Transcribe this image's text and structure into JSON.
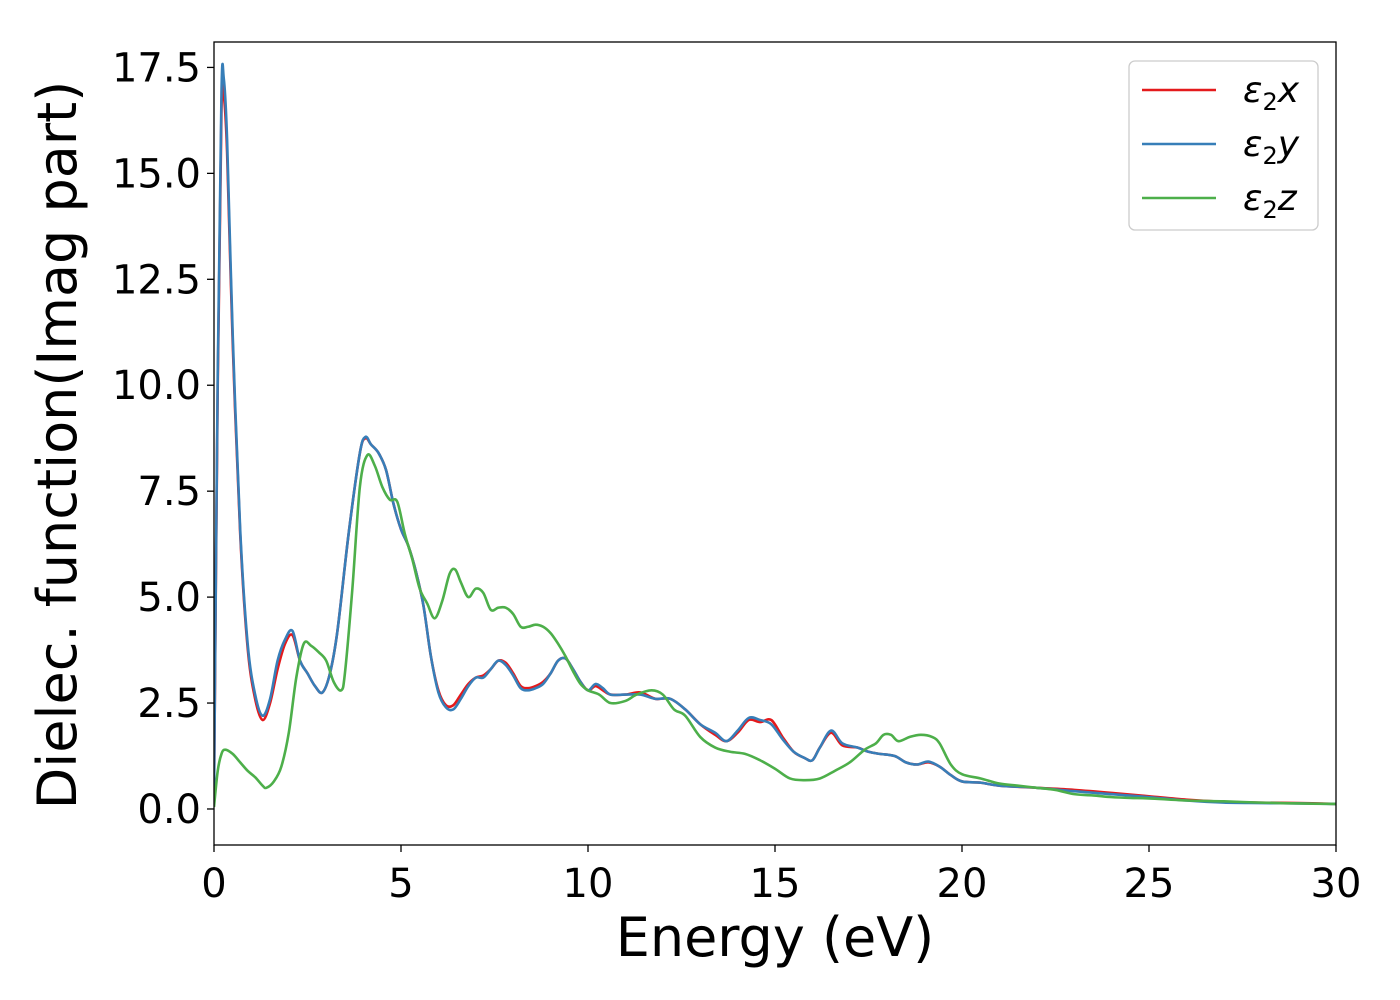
{
  "chart_data": {
    "type": "line",
    "title": "",
    "xlabel": "Energy (eV)",
    "ylabel": "Dielec. function(Imag part)",
    "xlim": [
      0,
      30
    ],
    "ylim": [
      -0.85,
      18.1
    ],
    "xticks": [
      0,
      5,
      10,
      15,
      20,
      25,
      30
    ],
    "xtick_labels": [
      "0",
      "5",
      "10",
      "15",
      "20",
      "25",
      "30"
    ],
    "yticks": [
      0.0,
      2.5,
      5.0,
      7.5,
      10.0,
      12.5,
      15.0,
      17.5
    ],
    "ytick_labels": [
      "0.0",
      "2.5",
      "5.0",
      "7.5",
      "10.0",
      "12.5",
      "15.0",
      "17.5"
    ],
    "grid": false,
    "legend_position": "top-right",
    "series": [
      {
        "name": "ε2x",
        "legend": {
          "base": "ε",
          "sub": "2",
          "var": "x"
        },
        "color": "#e41a1c",
        "points": [
          [
            0,
            0.3
          ],
          [
            0.1,
            10
          ],
          [
            0.2,
            16.5
          ],
          [
            0.26,
            16.85
          ],
          [
            0.35,
            15.5
          ],
          [
            0.5,
            11
          ],
          [
            0.7,
            6.5
          ],
          [
            0.9,
            3.8
          ],
          [
            1.1,
            2.6
          ],
          [
            1.3,
            2.1
          ],
          [
            1.5,
            2.5
          ],
          [
            1.7,
            3.3
          ],
          [
            1.9,
            3.9
          ],
          [
            2.1,
            4.1
          ],
          [
            2.3,
            3.5
          ],
          [
            2.5,
            3.2
          ],
          [
            2.7,
            2.9
          ],
          [
            2.9,
            2.75
          ],
          [
            3.1,
            3.2
          ],
          [
            3.3,
            4.2
          ],
          [
            3.6,
            6.5
          ],
          [
            3.9,
            8.4
          ],
          [
            4.05,
            8.75
          ],
          [
            4.2,
            8.6
          ],
          [
            4.4,
            8.4
          ],
          [
            4.6,
            8.0
          ],
          [
            4.8,
            7.2
          ],
          [
            5.0,
            6.6
          ],
          [
            5.2,
            6.2
          ],
          [
            5.4,
            5.6
          ],
          [
            5.6,
            4.8
          ],
          [
            5.8,
            3.6
          ],
          [
            6.0,
            2.8
          ],
          [
            6.2,
            2.45
          ],
          [
            6.4,
            2.45
          ],
          [
            6.6,
            2.7
          ],
          [
            6.8,
            2.95
          ],
          [
            7.0,
            3.1
          ],
          [
            7.2,
            3.15
          ],
          [
            7.4,
            3.3
          ],
          [
            7.6,
            3.5
          ],
          [
            7.8,
            3.45
          ],
          [
            8.0,
            3.2
          ],
          [
            8.2,
            2.9
          ],
          [
            8.4,
            2.85
          ],
          [
            8.6,
            2.9
          ],
          [
            8.8,
            3.0
          ],
          [
            9.0,
            3.2
          ],
          [
            9.2,
            3.5
          ],
          [
            9.4,
            3.55
          ],
          [
            9.6,
            3.3
          ],
          [
            9.8,
            3.0
          ],
          [
            10.0,
            2.8
          ],
          [
            10.2,
            2.9
          ],
          [
            10.4,
            2.8
          ],
          [
            10.6,
            2.7
          ],
          [
            11.0,
            2.7
          ],
          [
            11.4,
            2.75
          ],
          [
            11.8,
            2.6
          ],
          [
            12.2,
            2.6
          ],
          [
            12.6,
            2.35
          ],
          [
            13.0,
            2.0
          ],
          [
            13.4,
            1.75
          ],
          [
            13.7,
            1.6
          ],
          [
            14.0,
            1.8
          ],
          [
            14.3,
            2.1
          ],
          [
            14.6,
            2.05
          ],
          [
            14.9,
            2.1
          ],
          [
            15.2,
            1.7
          ],
          [
            15.5,
            1.35
          ],
          [
            15.8,
            1.2
          ],
          [
            16.0,
            1.15
          ],
          [
            16.2,
            1.45
          ],
          [
            16.5,
            1.8
          ],
          [
            16.8,
            1.5
          ],
          [
            17.2,
            1.45
          ],
          [
            17.5,
            1.35
          ],
          [
            17.8,
            1.3
          ],
          [
            18.2,
            1.25
          ],
          [
            18.5,
            1.1
          ],
          [
            18.8,
            1.05
          ],
          [
            19.1,
            1.1
          ],
          [
            19.4,
            1.0
          ],
          [
            19.7,
            0.8
          ],
          [
            20.0,
            0.65
          ],
          [
            20.5,
            0.62
          ],
          [
            21.0,
            0.55
          ],
          [
            22.0,
            0.5
          ],
          [
            23.0,
            0.45
          ],
          [
            24.0,
            0.38
          ],
          [
            25.0,
            0.3
          ],
          [
            26.0,
            0.22
          ],
          [
            27.0,
            0.17
          ],
          [
            28.0,
            0.15
          ],
          [
            29.0,
            0.14
          ],
          [
            30.0,
            0.12
          ]
        ]
      },
      {
        "name": "ε2y",
        "legend": {
          "base": "ε",
          "sub": "2",
          "var": "y"
        },
        "color": "#377eb8",
        "points": [
          [
            0,
            0.3
          ],
          [
            0.1,
            10.3
          ],
          [
            0.2,
            16.9
          ],
          [
            0.26,
            17.25
          ],
          [
            0.35,
            15.8
          ],
          [
            0.5,
            11.2
          ],
          [
            0.7,
            6.6
          ],
          [
            0.9,
            3.9
          ],
          [
            1.1,
            2.7
          ],
          [
            1.3,
            2.2
          ],
          [
            1.5,
            2.6
          ],
          [
            1.7,
            3.5
          ],
          [
            1.9,
            4.0
          ],
          [
            2.1,
            4.2
          ],
          [
            2.3,
            3.5
          ],
          [
            2.5,
            3.2
          ],
          [
            2.7,
            2.9
          ],
          [
            2.9,
            2.75
          ],
          [
            3.1,
            3.2
          ],
          [
            3.3,
            4.2
          ],
          [
            3.6,
            6.5
          ],
          [
            3.9,
            8.4
          ],
          [
            4.05,
            8.78
          ],
          [
            4.2,
            8.6
          ],
          [
            4.4,
            8.4
          ],
          [
            4.6,
            8.0
          ],
          [
            4.8,
            7.2
          ],
          [
            5.0,
            6.6
          ],
          [
            5.2,
            6.2
          ],
          [
            5.4,
            5.6
          ],
          [
            5.6,
            4.8
          ],
          [
            5.8,
            3.6
          ],
          [
            6.0,
            2.75
          ],
          [
            6.2,
            2.4
          ],
          [
            6.4,
            2.35
          ],
          [
            6.6,
            2.6
          ],
          [
            6.8,
            2.9
          ],
          [
            7.0,
            3.1
          ],
          [
            7.2,
            3.1
          ],
          [
            7.4,
            3.3
          ],
          [
            7.6,
            3.5
          ],
          [
            7.8,
            3.4
          ],
          [
            8.0,
            3.15
          ],
          [
            8.2,
            2.85
          ],
          [
            8.4,
            2.8
          ],
          [
            8.6,
            2.85
          ],
          [
            8.8,
            2.95
          ],
          [
            9.0,
            3.2
          ],
          [
            9.2,
            3.5
          ],
          [
            9.4,
            3.55
          ],
          [
            9.6,
            3.3
          ],
          [
            9.8,
            3.0
          ],
          [
            10.0,
            2.8
          ],
          [
            10.2,
            2.95
          ],
          [
            10.4,
            2.85
          ],
          [
            10.6,
            2.7
          ],
          [
            11.0,
            2.7
          ],
          [
            11.4,
            2.7
          ],
          [
            11.8,
            2.6
          ],
          [
            12.2,
            2.6
          ],
          [
            12.6,
            2.35
          ],
          [
            13.0,
            2.0
          ],
          [
            13.4,
            1.8
          ],
          [
            13.7,
            1.6
          ],
          [
            14.0,
            1.85
          ],
          [
            14.3,
            2.15
          ],
          [
            14.6,
            2.1
          ],
          [
            14.9,
            2.0
          ],
          [
            15.2,
            1.65
          ],
          [
            15.5,
            1.35
          ],
          [
            15.8,
            1.2
          ],
          [
            16.0,
            1.15
          ],
          [
            16.2,
            1.45
          ],
          [
            16.5,
            1.85
          ],
          [
            16.8,
            1.55
          ],
          [
            17.2,
            1.45
          ],
          [
            17.5,
            1.35
          ],
          [
            17.8,
            1.3
          ],
          [
            18.2,
            1.25
          ],
          [
            18.5,
            1.1
          ],
          [
            18.8,
            1.05
          ],
          [
            19.1,
            1.12
          ],
          [
            19.4,
            1.0
          ],
          [
            19.7,
            0.8
          ],
          [
            20.0,
            0.65
          ],
          [
            20.5,
            0.62
          ],
          [
            21.0,
            0.55
          ],
          [
            22.0,
            0.5
          ],
          [
            23.0,
            0.42
          ],
          [
            24.0,
            0.35
          ],
          [
            25.0,
            0.28
          ],
          [
            26.0,
            0.2
          ],
          [
            27.0,
            0.15
          ],
          [
            28.0,
            0.14
          ],
          [
            29.0,
            0.13
          ],
          [
            30.0,
            0.12
          ]
        ]
      },
      {
        "name": "ε2z",
        "legend": {
          "base": "ε",
          "sub": "2",
          "var": "z"
        },
        "color": "#4daf4a",
        "points": [
          [
            0,
            0.05
          ],
          [
            0.1,
            0.9
          ],
          [
            0.2,
            1.3
          ],
          [
            0.3,
            1.4
          ],
          [
            0.5,
            1.3
          ],
          [
            0.7,
            1.1
          ],
          [
            0.9,
            0.9
          ],
          [
            1.1,
            0.75
          ],
          [
            1.3,
            0.55
          ],
          [
            1.4,
            0.5
          ],
          [
            1.6,
            0.65
          ],
          [
            1.8,
            1.0
          ],
          [
            2.0,
            1.8
          ],
          [
            2.2,
            3.1
          ],
          [
            2.4,
            3.9
          ],
          [
            2.6,
            3.85
          ],
          [
            2.8,
            3.7
          ],
          [
            3.0,
            3.5
          ],
          [
            3.2,
            3.0
          ],
          [
            3.4,
            2.8
          ],
          [
            3.5,
            3.2
          ],
          [
            3.7,
            5.2
          ],
          [
            3.9,
            7.6
          ],
          [
            4.1,
            8.35
          ],
          [
            4.3,
            8.1
          ],
          [
            4.5,
            7.6
          ],
          [
            4.7,
            7.3
          ],
          [
            4.9,
            7.25
          ],
          [
            5.1,
            6.5
          ],
          [
            5.3,
            5.9
          ],
          [
            5.5,
            5.2
          ],
          [
            5.7,
            4.85
          ],
          [
            5.9,
            4.5
          ],
          [
            6.1,
            4.9
          ],
          [
            6.3,
            5.55
          ],
          [
            6.45,
            5.65
          ],
          [
            6.6,
            5.35
          ],
          [
            6.8,
            5.0
          ],
          [
            7.0,
            5.2
          ],
          [
            7.2,
            5.1
          ],
          [
            7.4,
            4.7
          ],
          [
            7.6,
            4.75
          ],
          [
            7.8,
            4.75
          ],
          [
            8.0,
            4.6
          ],
          [
            8.2,
            4.3
          ],
          [
            8.4,
            4.3
          ],
          [
            8.6,
            4.35
          ],
          [
            8.8,
            4.3
          ],
          [
            9.0,
            4.15
          ],
          [
            9.2,
            3.9
          ],
          [
            9.4,
            3.6
          ],
          [
            9.6,
            3.25
          ],
          [
            9.8,
            2.95
          ],
          [
            10.0,
            2.8
          ],
          [
            10.3,
            2.7
          ],
          [
            10.6,
            2.5
          ],
          [
            11.0,
            2.55
          ],
          [
            11.3,
            2.7
          ],
          [
            11.7,
            2.8
          ],
          [
            12.0,
            2.7
          ],
          [
            12.3,
            2.35
          ],
          [
            12.6,
            2.2
          ],
          [
            13.0,
            1.7
          ],
          [
            13.4,
            1.45
          ],
          [
            13.8,
            1.35
          ],
          [
            14.2,
            1.3
          ],
          [
            14.6,
            1.15
          ],
          [
            15.0,
            0.95
          ],
          [
            15.4,
            0.72
          ],
          [
            15.8,
            0.68
          ],
          [
            16.2,
            0.72
          ],
          [
            16.6,
            0.9
          ],
          [
            17.0,
            1.1
          ],
          [
            17.4,
            1.4
          ],
          [
            17.7,
            1.55
          ],
          [
            17.9,
            1.75
          ],
          [
            18.1,
            1.75
          ],
          [
            18.3,
            1.6
          ],
          [
            18.6,
            1.7
          ],
          [
            18.9,
            1.75
          ],
          [
            19.2,
            1.7
          ],
          [
            19.4,
            1.55
          ],
          [
            19.7,
            1.05
          ],
          [
            20.0,
            0.82
          ],
          [
            20.5,
            0.72
          ],
          [
            21.0,
            0.6
          ],
          [
            21.5,
            0.55
          ],
          [
            22.0,
            0.5
          ],
          [
            22.5,
            0.45
          ],
          [
            23.0,
            0.35
          ],
          [
            23.5,
            0.32
          ],
          [
            24.0,
            0.28
          ],
          [
            24.5,
            0.26
          ],
          [
            25.0,
            0.25
          ],
          [
            26.0,
            0.2
          ],
          [
            27.0,
            0.18
          ],
          [
            28.0,
            0.15
          ],
          [
            29.0,
            0.13
          ],
          [
            30.0,
            0.12
          ]
        ]
      }
    ]
  }
}
